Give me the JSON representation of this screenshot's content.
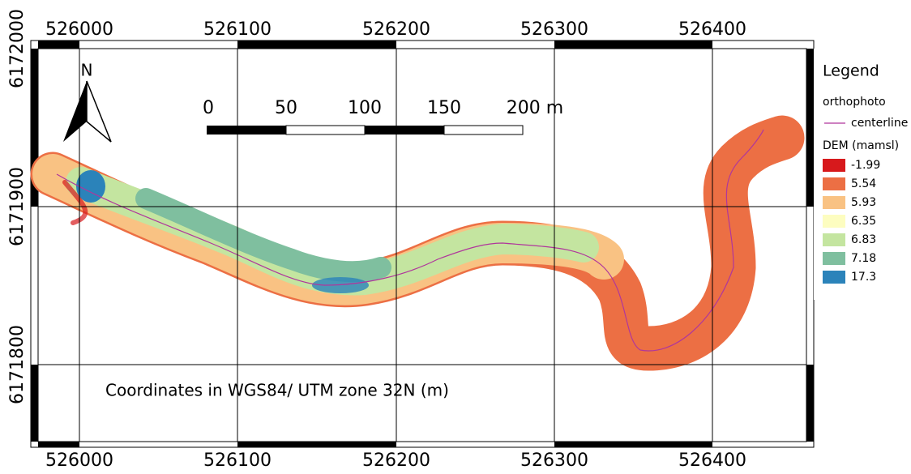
{
  "map": {
    "x_labels": [
      "526000",
      "526100",
      "526200",
      "526300",
      "526400"
    ],
    "y_labels": [
      "6172000",
      "6171900",
      "6171800"
    ],
    "north": "N",
    "scale_labels": [
      "0",
      "50",
      "100",
      "150",
      "200 m"
    ],
    "note": "Coordinates  in WGS84/ UTM zone 32N (m)"
  },
  "legend": {
    "title": "Legend",
    "orthophoto": "orthophoto",
    "centerline": "centerline",
    "dem_title": "DEM (mamsl)",
    "classes": [
      {
        "label": "-1.99",
        "color": "#d7191c"
      },
      {
        "label": "5.54",
        "color": "#ec6f44"
      },
      {
        "label": "5.93",
        "color": "#f9c283"
      },
      {
        "label": "6.35",
        "color": "#fdfdc0"
      },
      {
        "label": "6.83",
        "color": "#c4e5a0"
      },
      {
        "label": "7.18",
        "color": "#7fbf9f"
      },
      {
        "label": "17.3",
        "color": "#2b83ba"
      }
    ]
  }
}
